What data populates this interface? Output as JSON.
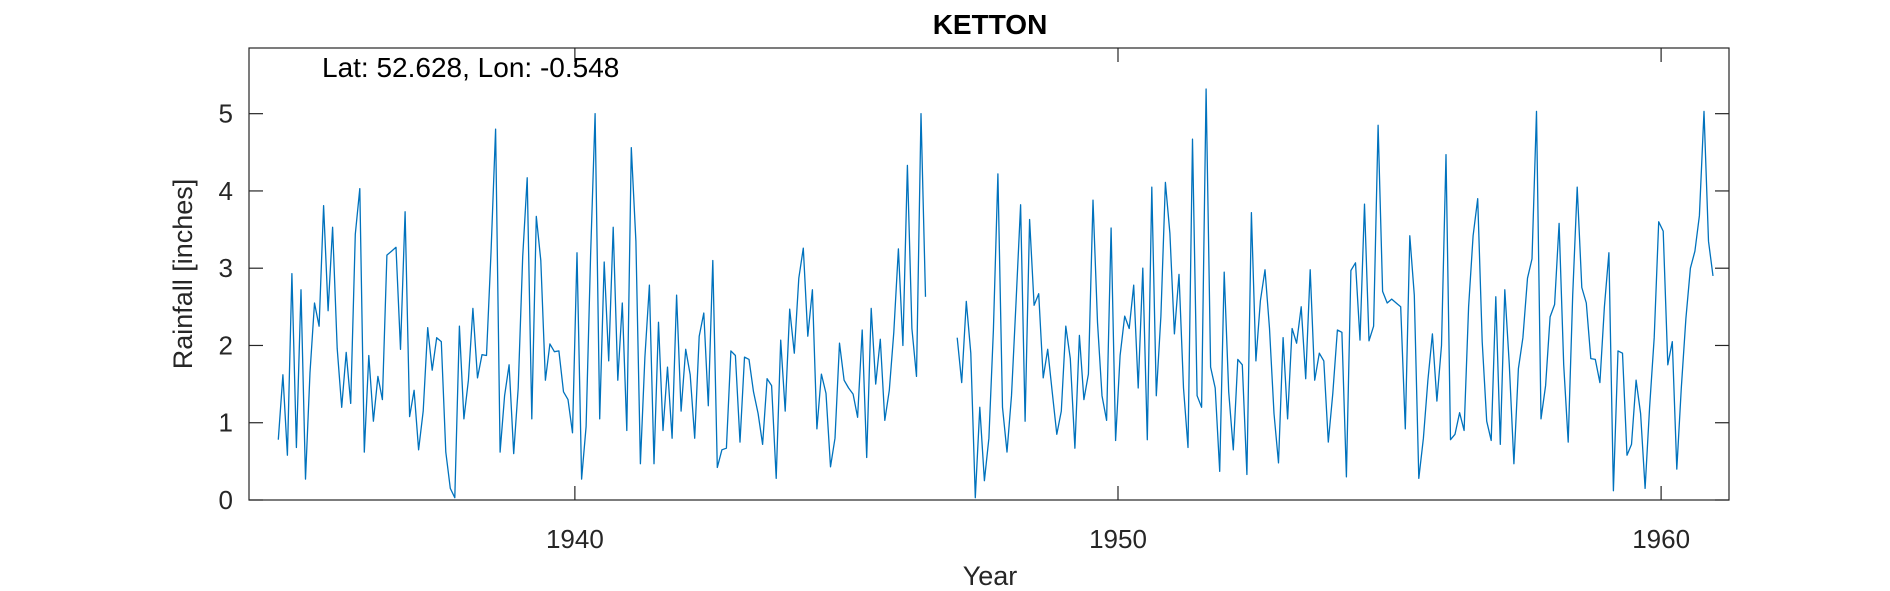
{
  "chart_data": {
    "type": "line",
    "title": "KETTON",
    "annotation": "Lat: 52.628, Lon: -0.548",
    "xlabel": "Year",
    "ylabel": "Rainfall [inches]",
    "xlim": [
      1934,
      1961.25
    ],
    "ylim": [
      0,
      5.85
    ],
    "xticks": [
      1940,
      1950,
      1960
    ],
    "yticks": [
      0,
      1,
      2,
      3,
      4,
      5
    ],
    "grid": false,
    "line_color": "#0072BD",
    "series": [
      {
        "x_start": 1934.54,
        "x_step": 0.08333,
        "values": [
          0.78,
          1.62,
          0.58,
          2.93,
          0.68,
          2.72,
          0.27,
          1.65,
          2.55,
          2.25,
          3.81,
          2.45,
          3.53,
          1.96,
          1.2,
          1.91,
          1.25,
          3.44,
          4.03,
          0.62,
          1.87,
          1.02,
          1.6,
          1.3,
          3.17,
          3.22,
          3.27,
          1.95,
          3.73,
          1.08,
          1.42,
          0.65,
          1.15,
          2.23,
          1.68,
          2.1,
          2.05,
          0.62,
          0.15,
          0.03,
          2.25,
          1.05,
          1.55,
          2.48,
          1.58,
          1.88,
          1.87,
          3.2,
          4.8,
          0.62,
          1.35,
          1.75,
          0.6,
          1.45,
          3.15,
          4.17,
          1.05,
          3.67,
          3.1,
          1.55,
          2.02,
          1.92,
          1.93,
          1.4,
          1.3,
          0.87,
          3.2,
          0.27,
          0.95,
          3.17,
          5.0,
          1.05,
          3.08,
          1.8,
          3.53,
          1.55,
          2.55,
          0.9,
          4.56,
          3.35,
          0.47,
          1.85,
          2.78,
          0.47,
          2.3,
          0.9,
          1.72,
          0.8,
          2.65,
          1.15,
          1.95,
          1.62,
          0.8,
          2.12,
          2.42,
          1.22,
          3.1,
          0.42,
          0.65,
          0.67,
          1.93,
          1.87,
          0.75,
          1.85,
          1.82,
          1.4,
          1.12,
          0.72,
          1.57,
          1.48,
          0.28,
          2.07,
          1.15,
          2.47,
          1.9,
          2.87,
          3.26,
          2.12,
          2.72,
          0.92,
          1.63,
          1.38,
          0.43,
          0.8,
          2.03,
          1.55,
          1.45,
          1.37,
          1.07,
          2.2,
          0.55,
          2.48,
          1.5,
          2.08,
          1.03,
          1.42,
          2.17,
          3.25,
          2.0,
          4.33,
          2.22,
          1.6,
          5.0,
          2.63,
          null,
          null,
          null,
          null,
          null,
          null,
          2.1,
          1.52,
          2.57,
          1.9,
          0.03,
          1.2,
          0.25,
          0.8,
          2.2,
          4.22,
          1.2,
          0.62,
          1.35,
          2.55,
          3.82,
          1.02,
          3.63,
          2.52,
          2.67,
          1.58,
          1.95,
          1.4,
          0.85,
          1.15,
          2.25,
          1.83,
          0.67,
          2.13,
          1.3,
          1.63,
          3.88,
          2.3,
          1.35,
          1.03,
          3.52,
          0.77,
          1.87,
          2.38,
          2.22,
          2.78,
          1.45,
          3.0,
          0.78,
          4.05,
          1.35,
          2.38,
          4.11,
          3.45,
          2.15,
          2.92,
          1.45,
          0.68,
          4.67,
          1.35,
          1.2,
          5.32,
          1.72,
          1.45,
          0.37,
          2.95,
          1.4,
          0.65,
          1.82,
          1.75,
          0.33,
          3.72,
          1.8,
          2.58,
          2.98,
          2.22,
          1.12,
          0.48,
          2.1,
          1.05,
          2.22,
          2.03,
          2.5,
          1.57,
          2.98,
          1.55,
          1.9,
          1.8,
          0.75,
          1.38,
          2.2,
          2.17,
          0.3,
          2.97,
          3.07,
          2.07,
          3.83,
          2.06,
          2.25,
          4.85,
          2.7,
          2.55,
          2.6,
          2.55,
          2.5,
          0.92,
          3.42,
          2.65,
          0.28,
          0.8,
          1.55,
          2.15,
          1.28,
          2.0,
          4.47,
          0.78,
          0.85,
          1.13,
          0.9,
          2.5,
          3.42,
          3.9,
          2.05,
          1.02,
          0.77,
          2.63,
          0.72,
          2.72,
          1.75,
          0.47,
          1.7,
          2.1,
          2.87,
          3.12,
          5.03,
          1.05,
          1.48,
          2.37,
          2.53,
          3.58,
          1.75,
          0.75,
          2.65,
          4.05,
          2.75,
          2.55,
          1.83,
          1.82,
          1.52,
          2.5,
          3.2,
          0.12,
          1.93,
          1.9,
          0.58,
          0.72,
          1.55,
          1.12,
          0.15,
          1.2,
          2.1,
          3.6,
          3.48,
          1.75,
          2.05,
          0.4,
          1.45,
          2.35,
          3.0,
          3.22,
          3.68,
          5.03,
          3.35,
          2.9
        ]
      }
    ]
  }
}
